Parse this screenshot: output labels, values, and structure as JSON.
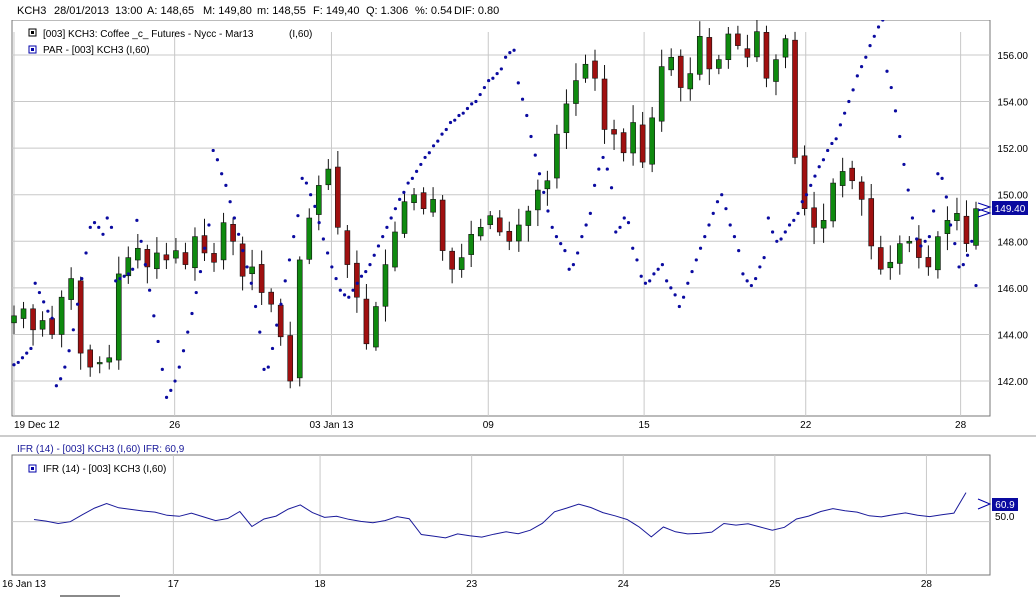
{
  "header": {
    "symbol": "KCH3",
    "date": "28/01/2013",
    "time": "13:00",
    "open": "A: 148,65",
    "high": "M: 149,80",
    "low": "m: 148,55",
    "close": "F: 149,40",
    "volume": "Q: 1.306",
    "pct": "%: 0.54",
    "dif": "DIF: 0.80"
  },
  "legend": {
    "series1": "[003] KCH3: Coffee _c_ Futures - Nycc - Mar13",
    "series1_period": "(I,60)",
    "series2": "PAR   - [003] KCH3 (I,60)"
  },
  "price_axis": {
    "ticks": [
      "156.00",
      "154.00",
      "152.00",
      "150.00",
      "148.00",
      "146.00",
      "144.00",
      "142.00"
    ],
    "last_value": "149.40"
  },
  "date_axis": {
    "ticks": [
      "19 Dec 12",
      "26",
      "03 Jan 13",
      "09",
      "15",
      "22",
      "28"
    ]
  },
  "indicator": {
    "title": "IFR (14)  - [003] KCH3 (I,60)  IFR: 60,9",
    "legend": "IFR (14)  - [003] KCH3 (I,60)",
    "axis_label": "50.0",
    "last_value": "60.9",
    "date_ticks": [
      "16 Jan 13",
      "17",
      "18",
      "23",
      "24",
      "25",
      "28"
    ]
  },
  "colors": {
    "up": "#0f8a0f",
    "down": "#a01010",
    "sar": "#0a0aa0",
    "line": "#1a1a9a",
    "grid": "#c8c8c8"
  },
  "chart_data": [
    {
      "type": "candlestick",
      "title": "[003] KCH3: Coffee _c_ Futures - Nycc - Mar13",
      "ylim": [
        140.5,
        157.5
      ],
      "x_ticks": [
        "19 Dec 12",
        "26",
        "03 Jan 13",
        "09",
        "15",
        "22",
        "28"
      ],
      "close": [
        144.8,
        145.1,
        144.2,
        144.6,
        144.0,
        145.6,
        146.4,
        143.2,
        142.6,
        142.8,
        143.0,
        146.6,
        147.3,
        147.7,
        146.9,
        147.5,
        147.2,
        147.6,
        147.0,
        148.2,
        147.5,
        147.1,
        148.8,
        148.0,
        146.5,
        146.9,
        145.8,
        145.3,
        143.9,
        142.0,
        147.2,
        149.0,
        150.4,
        151.1,
        148.6,
        147.0,
        145.6,
        143.6,
        145.2,
        147.0,
        148.4,
        149.7,
        150.0,
        149.4,
        149.8,
        147.6,
        146.8,
        147.3,
        148.3,
        148.6,
        149.1,
        148.4,
        148.0,
        148.7,
        149.3,
        150.2,
        150.6,
        152.6,
        153.9,
        154.9,
        155.6,
        155.0,
        152.8,
        152.6,
        151.8,
        153.1,
        151.4,
        153.3,
        155.5,
        155.9,
        154.6,
        155.2,
        156.8,
        155.4,
        155.8,
        156.9,
        156.4,
        155.9,
        157.0,
        155.0,
        155.8,
        156.7,
        151.6,
        149.4,
        148.6,
        148.9,
        150.5,
        151.0,
        150.6,
        149.8,
        147.8,
        146.8,
        147.1,
        147.9,
        148.0,
        147.3,
        146.9,
        148.2,
        148.9,
        149.2,
        147.9,
        149.4
      ],
      "series": [
        {
          "name": "PAR",
          "values": [
            142.7,
            142.8,
            143.0,
            143.2,
            143.4,
            146.2,
            145.8,
            145.4,
            145.0,
            144.7,
            141.8,
            142.1,
            142.6,
            143.3,
            144.2,
            145.3,
            146.4,
            147.5,
            148.6,
            148.8,
            148.6,
            148.3,
            149.0,
            148.6,
            146.3,
            146.4,
            146.5,
            146.6,
            146.8,
            148.9,
            148.0,
            147.0,
            145.9,
            144.8,
            143.7,
            142.5,
            141.3,
            141.6,
            142.0,
            142.6,
            143.3,
            144.1,
            144.9,
            145.8,
            146.7,
            147.7,
            148.7,
            151.9,
            151.5,
            150.9,
            150.4,
            149.7,
            149.0,
            148.3,
            147.6,
            146.9,
            146.2,
            145.2,
            144.1,
            142.5,
            142.6,
            143.4,
            144.4,
            145.3,
            146.3,
            147.2,
            148.2,
            149.1,
            150.7,
            150.5,
            150.0,
            149.5,
            148.8,
            148.1,
            147.5,
            146.9,
            146.4,
            145.9,
            145.7,
            145.6,
            145.9,
            146.2,
            146.5,
            146.7,
            147.0,
            147.4,
            147.8,
            148.2,
            148.6,
            149.0,
            149.4,
            149.8,
            150.1,
            150.5,
            150.7,
            151.0,
            151.3,
            151.6,
            151.8,
            152.1,
            152.3,
            152.6,
            152.8,
            153.1,
            153.2,
            153.4,
            153.5,
            153.7,
            153.9,
            154.0,
            154.3,
            154.6,
            154.9,
            155.0,
            155.2,
            155.4,
            155.9,
            156.1,
            156.2,
            154.8,
            154.1,
            153.4,
            152.5,
            151.7,
            150.9,
            150.1,
            149.3,
            148.6,
            148.2,
            147.9,
            147.6,
            146.8,
            147.0,
            147.5,
            148.2,
            148.7,
            149.2,
            150.4,
            151.1,
            151.6,
            151.1,
            150.3,
            148.4,
            148.6,
            149.0,
            148.8,
            147.7,
            147.2,
            146.5,
            146.2,
            146.3,
            146.6,
            146.8,
            147.0,
            146.3,
            146.0,
            145.7,
            145.2,
            145.6,
            146.2,
            146.7,
            147.2,
            147.7,
            148.2,
            148.7,
            149.2,
            149.7,
            150.0,
            149.4,
            148.7,
            148.2,
            147.6,
            146.6,
            146.3,
            146.1,
            146.4,
            146.9,
            147.3,
            149.0,
            148.4,
            148.0,
            148.1,
            148.4,
            148.7,
            148.9,
            149.2,
            149.7,
            150.0,
            150.4,
            150.8,
            151.2,
            151.5,
            151.9,
            152.2,
            152.4,
            153.0,
            153.5,
            154.0,
            154.5,
            155.1,
            155.5,
            155.9,
            156.4,
            156.8,
            157.2,
            157.5,
            155.3,
            154.6,
            153.6,
            152.5,
            151.3,
            150.2,
            149.0,
            148.1,
            147.8,
            148.0,
            148.2,
            149.3,
            150.9,
            150.7,
            149.9,
            148.7,
            147.9,
            146.9,
            147.0,
            147.4,
            148.0,
            146.1
          ]
        }
      ]
    },
    {
      "type": "line",
      "title": "IFR (14)",
      "x_ticks": [
        "16 Jan 13",
        "17",
        "18",
        "23",
        "24",
        "25",
        "28"
      ],
      "series": [
        {
          "name": "IFR (14)",
          "values": [
            50.8,
            50.2,
            49.3,
            50.0,
            52.6,
            55.1,
            56.8,
            55.2,
            54.6,
            54.0,
            53.6,
            52.4,
            52.0,
            53.2,
            51.8,
            50.4,
            51.2,
            53.8,
            48.2,
            51.0,
            52.1,
            54.7,
            56.3,
            53.4,
            51.6,
            52.0,
            50.9,
            50.1,
            49.6,
            50.4,
            51.9,
            51.1,
            45.2,
            44.6,
            43.9,
            45.4,
            44.7,
            44.2,
            45.3,
            46.2,
            45.5,
            46.8,
            49.4,
            53.7,
            55.1,
            56.6,
            55.3,
            53.4,
            52.2,
            50.8,
            48.0,
            44.3,
            48.0,
            46.2,
            45.4,
            45.6,
            46.1,
            49.3,
            48.7,
            49.2,
            48.0,
            46.8,
            47.9,
            51.0,
            52.1,
            53.8,
            54.9,
            54.1,
            53.6,
            52.2,
            51.8,
            52.6,
            53.3,
            52.4,
            51.9,
            52.6,
            53.2,
            60.9
          ]
        }
      ]
    }
  ]
}
